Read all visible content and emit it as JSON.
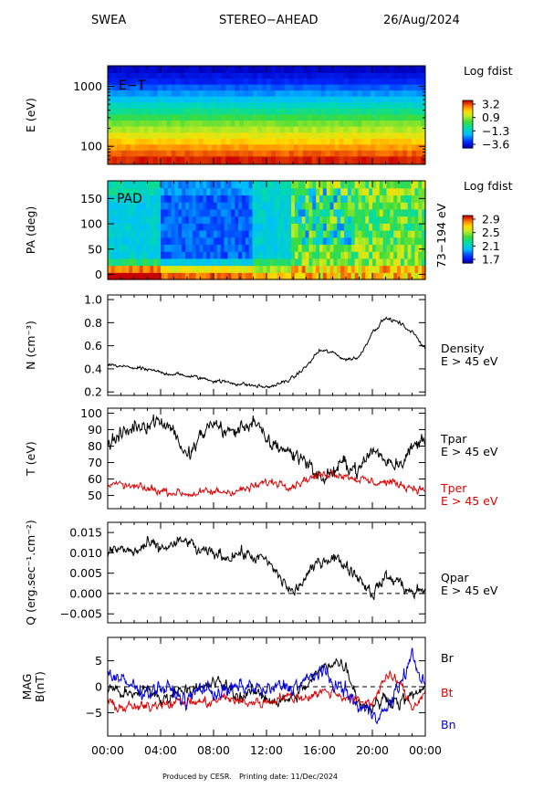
{
  "header": {
    "instrument": "SWEA",
    "spacecraft": "STEREO−AHEAD",
    "date": "26/Aug/2024"
  },
  "footer": {
    "produced_by": "Produced by CESR.",
    "printing_date": "Printing date: 11/Dec/2024"
  },
  "colors": {
    "black": "#000000",
    "red": "#e00000",
    "blue": "#0000e0"
  },
  "chart_data": [
    {
      "type": "heatmap",
      "id": "et",
      "label": "E−T",
      "ylabel": "E (eV)",
      "y_scale": "log",
      "ylim": [
        50,
        2200
      ],
      "y_ticks": [
        {
          "value": 100,
          "label": "100"
        },
        {
          "value": 1000,
          "label": "1000"
        }
      ],
      "colorbar": {
        "title": "Log fdist",
        "ticks": [
          "3.2",
          "0.9",
          "−1.3",
          "−3.6"
        ],
        "range": [
          -3.6,
          3.2
        ]
      },
      "energy_bins": [
        {
          "e": 1850,
          "v": -3.5
        },
        {
          "e": 1500,
          "v": -3.2
        },
        {
          "e": 1200,
          "v": -2.9
        },
        {
          "e": 950,
          "v": -2.4
        },
        {
          "e": 760,
          "v": -2.0
        },
        {
          "e": 600,
          "v": -1.5
        },
        {
          "e": 480,
          "v": -1.0
        },
        {
          "e": 380,
          "v": -0.5
        },
        {
          "e": 300,
          "v": 0.0
        },
        {
          "e": 240,
          "v": 0.5
        },
        {
          "e": 190,
          "v": 0.9
        },
        {
          "e": 150,
          "v": 1.4
        },
        {
          "e": 120,
          "v": 1.8
        },
        {
          "e": 95,
          "v": 2.2
        },
        {
          "e": 76,
          "v": 2.6
        },
        {
          "e": 60,
          "v": 3.0
        }
      ]
    },
    {
      "type": "heatmap",
      "id": "pad",
      "label": "PAD",
      "ylabel": "PA (deg)",
      "right_label": "73−194 eV",
      "ylim": [
        -10,
        185
      ],
      "y_ticks": [
        {
          "value": 0,
          "label": "0"
        },
        {
          "value": 50,
          "label": "50"
        },
        {
          "value": 100,
          "label": "100"
        },
        {
          "value": 150,
          "label": "150"
        }
      ],
      "colorbar": {
        "title": "Log fdist",
        "ticks": [
          "2.9",
          "2.5",
          "2.1",
          "1.7"
        ],
        "range": [
          1.7,
          2.9
        ]
      }
    },
    {
      "type": "line",
      "id": "density",
      "ylabel": "N (cm⁻³)",
      "ylim": [
        0.17,
        1.04
      ],
      "y_ticks": [
        {
          "value": 0.2,
          "label": "0.2"
        },
        {
          "value": 0.4,
          "label": "0.4"
        },
        {
          "value": 0.6,
          "label": "0.6"
        },
        {
          "value": 0.8,
          "label": "0.8"
        },
        {
          "value": 1.0,
          "label": "1.0"
        }
      ],
      "series": [
        {
          "name": "Density",
          "sub": "E > 45 eV",
          "color": "#000000",
          "noise": 0.012,
          "points": [
            [
              0,
              0.43
            ],
            [
              2,
              0.41
            ],
            [
              4,
              0.37
            ],
            [
              6,
              0.34
            ],
            [
              8,
              0.3
            ],
            [
              10,
              0.27
            ],
            [
              12,
              0.24
            ],
            [
              13,
              0.27
            ],
            [
              14,
              0.32
            ],
            [
              15,
              0.42
            ],
            [
              16,
              0.56
            ],
            [
              17,
              0.54
            ],
            [
              18,
              0.48
            ],
            [
              19,
              0.5
            ],
            [
              20,
              0.72
            ],
            [
              21,
              0.84
            ],
            [
              22,
              0.8
            ],
            [
              23,
              0.72
            ],
            [
              24,
              0.58
            ]
          ]
        }
      ]
    },
    {
      "type": "line",
      "id": "temperature",
      "ylabel": "T (eV)",
      "ylim": [
        42,
        103
      ],
      "y_ticks": [
        {
          "value": 50,
          "label": "50"
        },
        {
          "value": 60,
          "label": "60"
        },
        {
          "value": 70,
          "label": "70"
        },
        {
          "value": 80,
          "label": "80"
        },
        {
          "value": 90,
          "label": "90"
        },
        {
          "value": 100,
          "label": "100"
        }
      ],
      "series": [
        {
          "name": "Tpar",
          "sub": "E > 45 eV",
          "color": "#000000",
          "noise": 3.5,
          "points": [
            [
              0,
              82
            ],
            [
              1,
              86
            ],
            [
              2,
              92
            ],
            [
              3,
              94
            ],
            [
              4,
              96
            ],
            [
              5,
              90
            ],
            [
              6,
              72
            ],
            [
              7,
              85
            ],
            [
              8,
              95
            ],
            [
              9,
              88
            ],
            [
              10,
              90
            ],
            [
              11,
              96
            ],
            [
              12,
              82
            ],
            [
              13,
              80
            ],
            [
              14,
              75
            ],
            [
              15,
              72
            ],
            [
              16,
              60
            ],
            [
              17,
              64
            ],
            [
              18,
              70
            ],
            [
              19,
              65
            ],
            [
              20,
              78
            ],
            [
              21,
              72
            ],
            [
              22,
              70
            ],
            [
              23,
              78
            ],
            [
              24,
              86
            ]
          ]
        },
        {
          "name": "Tper",
          "sub": "E > 45 eV",
          "color": "#e00000",
          "noise": 1.8,
          "points": [
            [
              0,
              57
            ],
            [
              2,
              55
            ],
            [
              4,
              53
            ],
            [
              6,
              51
            ],
            [
              8,
              52
            ],
            [
              10,
              53
            ],
            [
              11,
              55
            ],
            [
              12,
              58
            ],
            [
              13,
              58
            ],
            [
              14,
              56
            ],
            [
              15,
              60
            ],
            [
              16,
              62
            ],
            [
              17,
              64
            ],
            [
              18,
              62
            ],
            [
              19,
              60
            ],
            [
              20,
              58
            ],
            [
              21,
              58
            ],
            [
              22,
              57
            ],
            [
              23,
              55
            ],
            [
              24,
              53
            ]
          ]
        }
      ]
    },
    {
      "type": "line",
      "id": "heatflux",
      "ylabel": "Q (erg.sec⁻¹.cm⁻²)",
      "ylim": [
        -0.0072,
        0.0175
      ],
      "y_ticks": [
        {
          "value": -0.005,
          "label": "−0.005"
        },
        {
          "value": 0.0,
          "label": "0.000"
        },
        {
          "value": 0.005,
          "label": "0.005"
        },
        {
          "value": 0.01,
          "label": "0.010"
        },
        {
          "value": 0.015,
          "label": "0.015"
        }
      ],
      "zero_line": true,
      "series": [
        {
          "name": "Qpar",
          "sub": "E > 45 eV",
          "color": "#000000",
          "noise": 0.0011,
          "points": [
            [
              0,
              0.01
            ],
            [
              1,
              0.011
            ],
            [
              2,
              0.01
            ],
            [
              3,
              0.012
            ],
            [
              4,
              0.011
            ],
            [
              5,
              0.012
            ],
            [
              6,
              0.013
            ],
            [
              7,
              0.01
            ],
            [
              8,
              0.01
            ],
            [
              9,
              0.009
            ],
            [
              10,
              0.01
            ],
            [
              11,
              0.009
            ],
            [
              12,
              0.008
            ],
            [
              13,
              0.004
            ],
            [
              14,
              0.0
            ],
            [
              15,
              0.004
            ],
            [
              16,
              0.008
            ],
            [
              17,
              0.009
            ],
            [
              18,
              0.007
            ],
            [
              19,
              0.004
            ],
            [
              20,
              0.0
            ],
            [
              21,
              0.004
            ],
            [
              22,
              0.003
            ],
            [
              23,
              0.0
            ],
            [
              24,
              0.001
            ]
          ]
        }
      ]
    },
    {
      "type": "line",
      "id": "mag",
      "ylabel": "MAG",
      "ylabel2": "B(nT)",
      "ylim": [
        -9.5,
        9.5
      ],
      "y_ticks": [
        {
          "value": -5,
          "label": "−5"
        },
        {
          "value": 0,
          "label": "0"
        },
        {
          "value": 5,
          "label": "5"
        }
      ],
      "zero_line": true,
      "x_ticks": [
        "00:00",
        "04:00",
        "08:00",
        "12:00",
        "16:00",
        "20:00",
        "00:00"
      ],
      "series": [
        {
          "name": "Br",
          "color": "#000000",
          "noise": 0.9,
          "points": [
            [
              0,
              0
            ],
            [
              1,
              -1
            ],
            [
              2,
              -2
            ],
            [
              3,
              0
            ],
            [
              4,
              -3
            ],
            [
              5,
              -1
            ],
            [
              6,
              0
            ],
            [
              7,
              -1
            ],
            [
              8,
              1
            ],
            [
              9,
              0
            ],
            [
              10,
              -2
            ],
            [
              11,
              -1
            ],
            [
              12,
              -2
            ],
            [
              13,
              -3
            ],
            [
              14,
              -2
            ],
            [
              15,
              0
            ],
            [
              16,
              3
            ],
            [
              17,
              5
            ],
            [
              18,
              4
            ],
            [
              19,
              -3
            ],
            [
              20,
              -4
            ],
            [
              21,
              -2
            ],
            [
              22,
              -3
            ],
            [
              23,
              -2
            ],
            [
              24,
              0
            ]
          ]
        },
        {
          "name": "Bt",
          "color": "#e00000",
          "noise": 0.7,
          "points": [
            [
              0,
              -3
            ],
            [
              1,
              -4
            ],
            [
              2,
              -4
            ],
            [
              3,
              -4
            ],
            [
              4,
              -3
            ],
            [
              5,
              -3
            ],
            [
              6,
              -3
            ],
            [
              7,
              -3
            ],
            [
              8,
              -3
            ],
            [
              9,
              -2
            ],
            [
              10,
              -3
            ],
            [
              11,
              -3
            ],
            [
              12,
              -3
            ],
            [
              13,
              -2
            ],
            [
              14,
              -2
            ],
            [
              15,
              -2
            ],
            [
              16,
              -1
            ],
            [
              17,
              -1
            ],
            [
              18,
              -2
            ],
            [
              19,
              -3
            ],
            [
              20,
              -3
            ],
            [
              21,
              2
            ],
            [
              22,
              1
            ],
            [
              23,
              -4
            ],
            [
              24,
              -1
            ]
          ]
        },
        {
          "name": "Bn",
          "color": "#0000e0",
          "noise": 1.1,
          "points": [
            [
              0,
              3
            ],
            [
              1,
              1
            ],
            [
              2,
              0
            ],
            [
              3,
              -1
            ],
            [
              4,
              0
            ],
            [
              5,
              -1
            ],
            [
              6,
              -3
            ],
            [
              7,
              0
            ],
            [
              8,
              -1
            ],
            [
              9,
              -1
            ],
            [
              10,
              0
            ],
            [
              11,
              0
            ],
            [
              12,
              -1
            ],
            [
              13,
              0
            ],
            [
              14,
              0
            ],
            [
              15,
              1
            ],
            [
              16,
              3
            ],
            [
              17,
              1
            ],
            [
              18,
              -1
            ],
            [
              19,
              -4
            ],
            [
              20,
              -5
            ],
            [
              21,
              -5
            ],
            [
              22,
              0
            ],
            [
              23,
              6
            ],
            [
              24,
              0
            ]
          ]
        }
      ]
    }
  ]
}
